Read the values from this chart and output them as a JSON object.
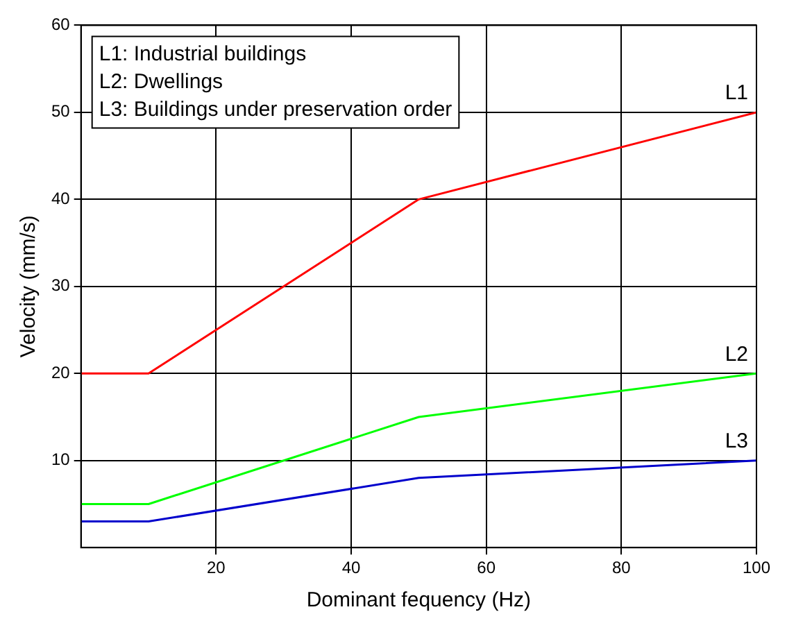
{
  "chart_data": {
    "type": "line",
    "xlabel": "Dominant fequency (Hz)",
    "ylabel": "Velocity (mm/s)",
    "x": [
      0,
      10,
      50,
      100
    ],
    "series": [
      {
        "name": "L1",
        "color": "#ff0000",
        "values": [
          20,
          20,
          40,
          50
        ]
      },
      {
        "name": "L2",
        "color": "#00ff00",
        "values": [
          5,
          5,
          15,
          20
        ]
      },
      {
        "name": "L3",
        "color": "#0000cc",
        "values": [
          3,
          3,
          8,
          10
        ]
      }
    ],
    "xlim": [
      0,
      100
    ],
    "xticks": [
      20,
      40,
      60,
      80,
      100
    ],
    "ylim": [
      0,
      60
    ],
    "yticks": [
      10,
      20,
      30,
      40,
      50,
      60
    ],
    "grid": true,
    "legend": false,
    "marker": "none",
    "line_style": "solid",
    "annotations": [
      "L1: Industrial buildings",
      "L2: Dwellings",
      "L3: Buildings under preservation order"
    ]
  }
}
